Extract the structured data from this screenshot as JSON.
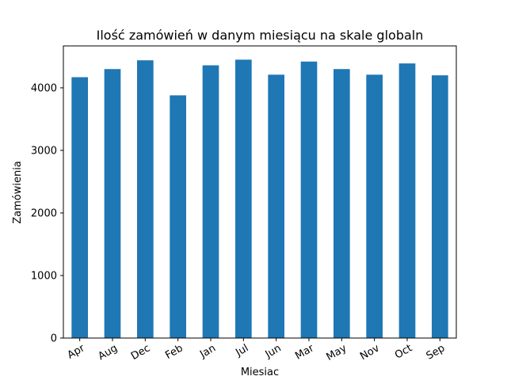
{
  "chart_data": {
    "type": "bar",
    "title": "Ilość zamówień w danym miesiącu na skale globaln",
    "xlabel": "Miesiac",
    "ylabel": "Zamówienia",
    "categories": [
      "Apr",
      "Aug",
      "Dec",
      "Feb",
      "Jan",
      "Jul",
      "Jun",
      "Mar",
      "May",
      "Nov",
      "Oct",
      "Sep"
    ],
    "values": [
      4170,
      4300,
      4440,
      3880,
      4360,
      4450,
      4210,
      4420,
      4300,
      4210,
      4390,
      4200
    ],
    "yticks": [
      0,
      1000,
      2000,
      3000,
      4000
    ],
    "ylim": [
      0,
      4670
    ],
    "grid": false,
    "legend": "none",
    "bar_color": "#1f77b4"
  }
}
